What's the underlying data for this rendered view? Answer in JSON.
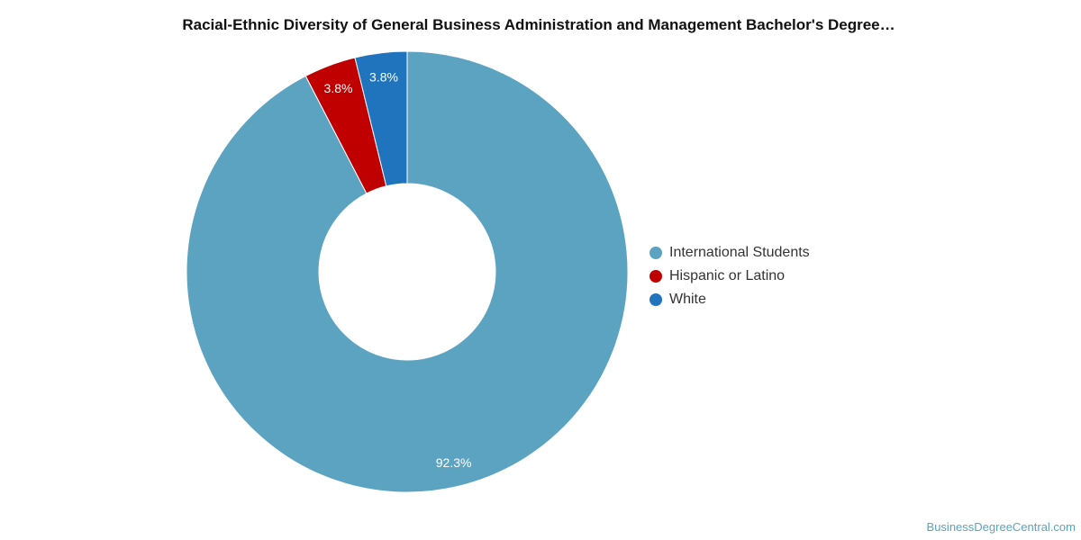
{
  "chart_data": {
    "type": "pie",
    "title": "Racial-Ethnic Diversity of General Business Administration and Management Bachelor's Degree…",
    "donut": true,
    "legend_position": "right",
    "slices": [
      {
        "label": "International Students",
        "value": 92.3,
        "data_label": "92.3%",
        "color": "#5ba3c0"
      },
      {
        "label": "Hispanic or Latino",
        "value": 3.8,
        "data_label": "3.8%",
        "color": "#c00000"
      },
      {
        "label": "White",
        "value": 3.8,
        "data_label": "3.8%",
        "color": "#1f74bd"
      }
    ]
  },
  "watermark": "BusinessDegreeCentral.com"
}
